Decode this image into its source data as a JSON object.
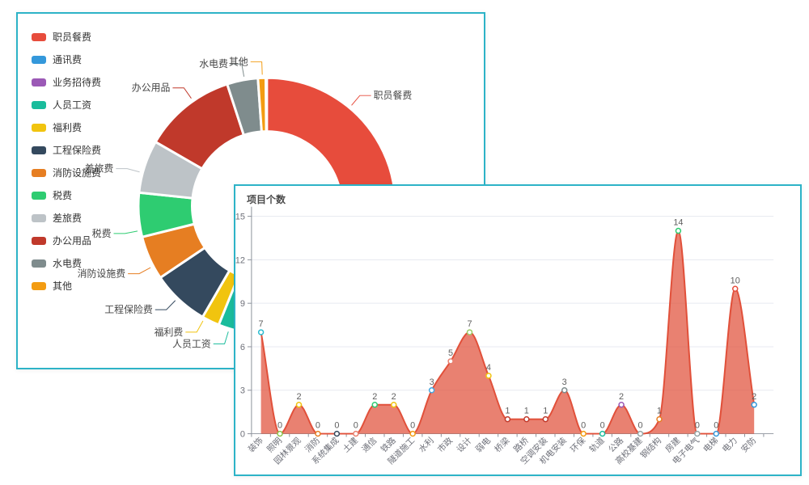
{
  "page": {
    "background": "#ffffff",
    "panel_border_color": "#2db3c7"
  },
  "area_panel": {
    "title": "项目个数"
  },
  "chart_data": [
    {
      "type": "pie",
      "subtype": "donut",
      "note": "slice values are not printed on screen; sizes are arc angles in degrees clockwise from top, estimated from pixels",
      "slices": [
        {
          "label": "职员餐费",
          "color": "#e74c3c",
          "start_deg": 0,
          "end_deg": 123,
          "label_deg": 40
        },
        {
          "label": "通讯费",
          "color": "#3498db",
          "start_deg": 123,
          "end_deg": 158
        },
        {
          "label": "业务招待费",
          "color": "#9b59b6",
          "start_deg": 158,
          "end_deg": 164
        },
        {
          "label": "人员工资",
          "color": "#1abc9c",
          "start_deg": 164,
          "end_deg": 202,
          "label_deg": 197
        },
        {
          "label": "福利费",
          "color": "#f1c40f",
          "start_deg": 202,
          "end_deg": 210,
          "label_deg": 209
        },
        {
          "label": "工程保险费",
          "color": "#34495e",
          "start_deg": 210,
          "end_deg": 236,
          "label_deg": 224
        },
        {
          "label": "消防设施费",
          "color": "#e67e22",
          "start_deg": 236,
          "end_deg": 256,
          "label_deg": 242
        },
        {
          "label": "税费",
          "color": "#2ecc71",
          "start_deg": 256,
          "end_deg": 276,
          "label_deg": 259
        },
        {
          "label": "差旅费",
          "color": "#bdc3c7",
          "start_deg": 276,
          "end_deg": 300,
          "label_deg": 285
        },
        {
          "label": "办公用品",
          "color": "#c0392b",
          "start_deg": 300,
          "end_deg": 342,
          "label_deg": 325
        },
        {
          "label": "水电费",
          "color": "#7f8c8d",
          "start_deg": 342,
          "end_deg": 356,
          "label_deg": 350
        },
        {
          "label": "其他",
          "color": "#f39c12",
          "start_deg": 356,
          "end_deg": 359.5,
          "label_deg": 358
        }
      ]
    },
    {
      "type": "area",
      "title": "项目个数",
      "categories": [
        "装饰",
        "照明",
        "园林景观",
        "消防",
        "系统集成",
        "土建",
        "通信",
        "铁路",
        "隧道施工",
        "水利",
        "市政",
        "设计",
        "弱电",
        "桥梁",
        "路桥",
        "空调安装",
        "机电安装",
        "环保",
        "轨道",
        "公路",
        "高校基建",
        "钢结构",
        "房建",
        "电子电气",
        "电梯",
        "电力",
        "安防"
      ],
      "values": [
        7,
        0,
        2,
        0,
        0,
        0,
        2,
        2,
        0,
        3,
        5,
        7,
        4,
        1,
        1,
        1,
        3,
        0,
        0,
        2,
        0,
        1,
        14,
        0,
        0,
        10,
        2
      ],
      "point_colors": [
        "#2dbdd1",
        "#8bc34a",
        "#f1c40f",
        "#e67e22",
        "#34495e",
        "#e8806f",
        "#2ecc71",
        "#f1c40f",
        "#f39c12",
        "#45a6e0",
        "#e8806f",
        "#9ccc65",
        "#f1c40f",
        "#c0392b",
        "#c0392b",
        "#c0392b",
        "#7f8c8d",
        "#f39c12",
        "#1abc9c",
        "#9b59b6",
        "#95a5a6",
        "#e67e22",
        "#2ecc71",
        "#95a5a6",
        "#3498db",
        "#e74c3c",
        "#3498db"
      ],
      "yticks": [
        0,
        3,
        6,
        9,
        12,
        15
      ],
      "ylim": [
        0,
        15
      ],
      "smooth": true,
      "grid": true,
      "line_color": "#e1503a",
      "fill_color": "rgba(225,80,58,0.72)",
      "axis_color": "#8d939c",
      "grid_color": "#e7eaf0",
      "label_color": "#6e7079",
      "value_label_color": "#5f5f5f"
    }
  ]
}
